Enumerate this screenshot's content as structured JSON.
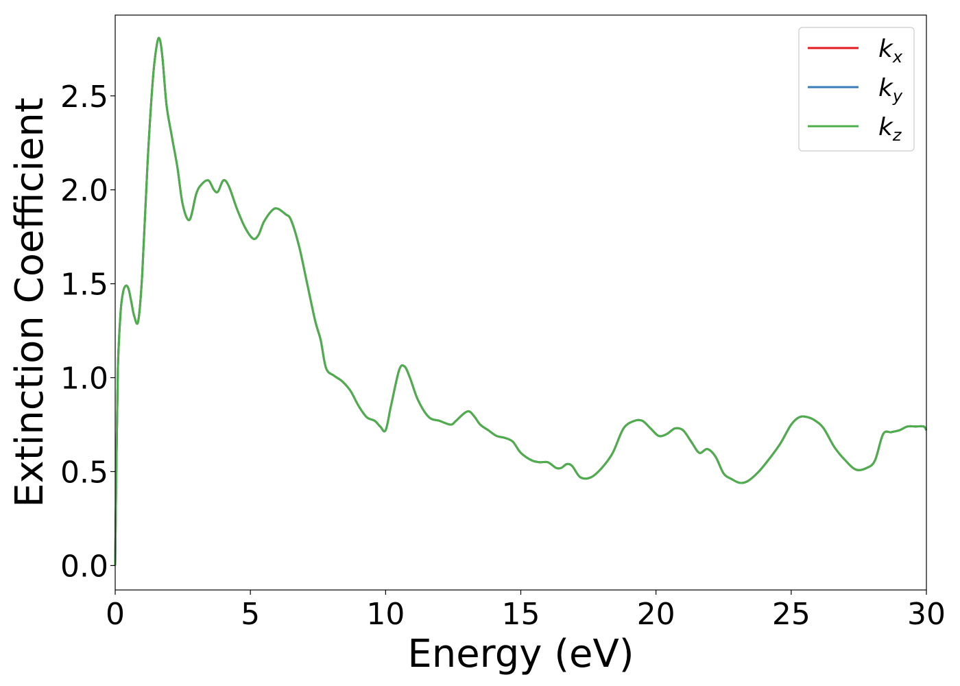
{
  "chart_data": {
    "type": "line",
    "title": "",
    "xlabel": "Energy (eV)",
    "ylabel": "Extinction Coefficient",
    "xlim": [
      0,
      30
    ],
    "ylim": [
      -0.13,
      2.93
    ],
    "xticks": [
      0,
      5,
      10,
      15,
      20,
      25,
      30
    ],
    "xtick_labels": [
      "0",
      "5",
      "10",
      "15",
      "20",
      "25",
      "30"
    ],
    "yticks": [
      0.0,
      0.5,
      1.0,
      1.5,
      2.0,
      2.5
    ],
    "ytick_labels": [
      "0.0",
      "0.5",
      "1.0",
      "1.5",
      "2.0",
      "2.5"
    ],
    "grid": false,
    "legend_position": "top-right",
    "x": [
      0,
      0.05,
      0.1,
      0.2,
      0.3,
      0.4,
      0.5,
      0.6,
      0.7,
      0.85,
      1.0,
      1.2,
      1.4,
      1.55,
      1.65,
      1.75,
      1.9,
      2.1,
      2.3,
      2.5,
      2.75,
      3.0,
      3.2,
      3.45,
      3.65,
      3.8,
      4.0,
      4.2,
      4.5,
      4.8,
      5.1,
      5.3,
      5.5,
      5.8,
      6.0,
      6.3,
      6.5,
      6.8,
      7.1,
      7.4,
      7.6,
      7.8,
      8.1,
      8.4,
      8.7,
      9.0,
      9.3,
      9.6,
      9.8,
      10.0,
      10.2,
      10.5,
      10.7,
      10.9,
      11.2,
      11.6,
      12.0,
      12.4,
      12.6,
      12.9,
      13.1,
      13.3,
      13.5,
      13.8,
      14.1,
      14.4,
      14.7,
      15.0,
      15.4,
      15.7,
      16.0,
      16.3,
      16.5,
      16.7,
      16.9,
      17.2,
      17.6,
      18.0,
      18.4,
      18.8,
      19.2,
      19.5,
      19.8,
      20.1,
      20.4,
      20.7,
      21.0,
      21.3,
      21.6,
      21.9,
      22.2,
      22.5,
      22.8,
      23.1,
      23.4,
      23.8,
      24.2,
      24.6,
      25.0,
      25.3,
      25.6,
      25.9,
      26.2,
      26.6,
      27.0,
      27.4,
      27.8,
      28.1,
      28.4,
      28.7,
      29.0,
      29.3,
      29.6,
      29.9,
      30.0
    ],
    "series": [
      {
        "name": "k_x",
        "color": "#e41a1c"
      },
      {
        "name": "k_y",
        "color": "#377eb8"
      },
      {
        "name": "k_z",
        "color": "#4daf4a"
      }
    ],
    "values": [
      0.0,
      0.6,
      1.05,
      1.35,
      1.46,
      1.49,
      1.47,
      1.4,
      1.33,
      1.3,
      1.55,
      2.15,
      2.6,
      2.78,
      2.8,
      2.7,
      2.45,
      2.28,
      2.12,
      1.92,
      1.84,
      1.98,
      2.03,
      2.05,
      2.0,
      1.99,
      2.05,
      2.02,
      1.9,
      1.8,
      1.74,
      1.76,
      1.83,
      1.89,
      1.9,
      1.87,
      1.84,
      1.7,
      1.5,
      1.3,
      1.2,
      1.05,
      1.01,
      0.98,
      0.93,
      0.85,
      0.79,
      0.77,
      0.74,
      0.72,
      0.85,
      1.04,
      1.06,
      1.0,
      0.88,
      0.79,
      0.77,
      0.75,
      0.77,
      0.81,
      0.82,
      0.79,
      0.75,
      0.72,
      0.69,
      0.68,
      0.66,
      0.6,
      0.56,
      0.55,
      0.55,
      0.52,
      0.52,
      0.54,
      0.53,
      0.47,
      0.47,
      0.52,
      0.6,
      0.73,
      0.77,
      0.77,
      0.73,
      0.69,
      0.7,
      0.73,
      0.72,
      0.66,
      0.6,
      0.62,
      0.58,
      0.49,
      0.46,
      0.44,
      0.45,
      0.5,
      0.57,
      0.65,
      0.75,
      0.79,
      0.79,
      0.77,
      0.73,
      0.63,
      0.56,
      0.51,
      0.52,
      0.56,
      0.7,
      0.71,
      0.72,
      0.74,
      0.74,
      0.74,
      0.72
    ]
  }
}
